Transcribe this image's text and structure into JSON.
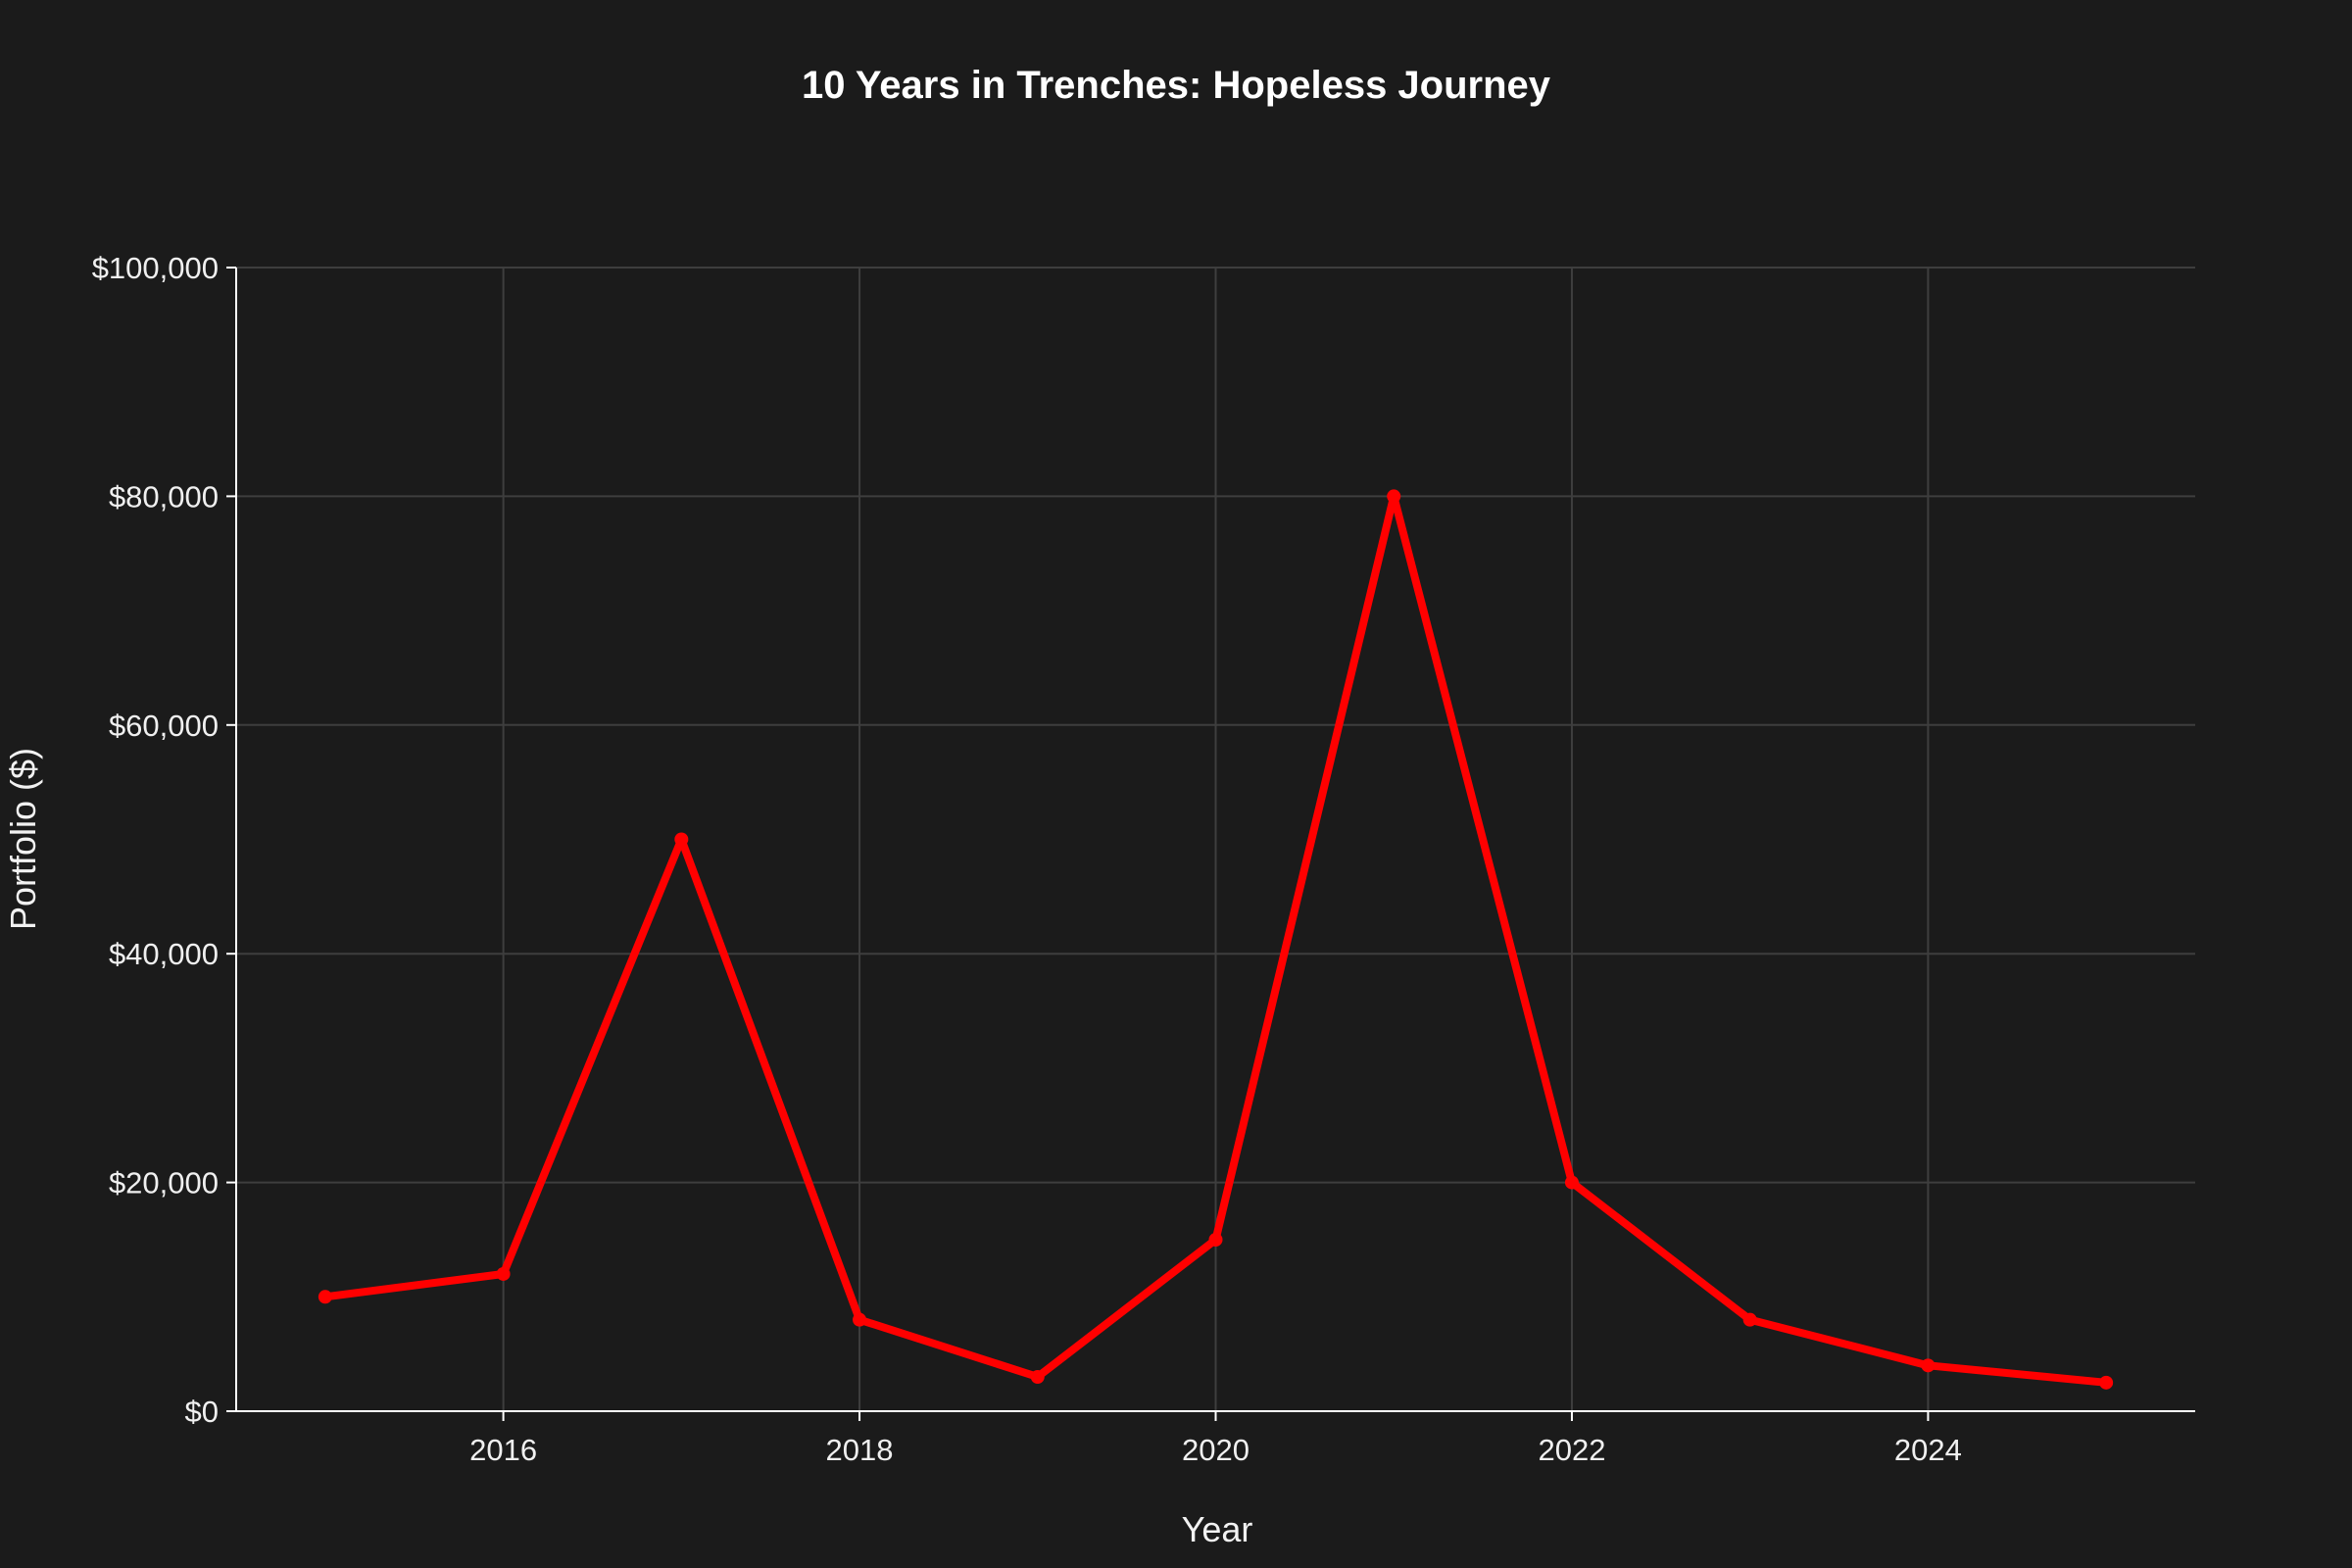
{
  "chart_data": {
    "type": "line",
    "title": "10 Years in Trenches: Hopeless Journey",
    "xlabel": "Year",
    "ylabel": "Portfolio ($)",
    "x": [
      2015,
      2016,
      2017,
      2018,
      2019,
      2020,
      2021,
      2022,
      2023,
      2024,
      2025
    ],
    "series": [
      {
        "values": [
          10000,
          12000,
          50000,
          8000,
          3000,
          15000,
          80000,
          20000,
          8000,
          4000,
          2500
        ]
      }
    ],
    "xlim": [
      2014.5,
      2025.5
    ],
    "ylim": [
      0,
      100000
    ],
    "xticks": [
      2016,
      2018,
      2020,
      2022,
      2024
    ],
    "xtick_labels": [
      "2016",
      "2018",
      "2020",
      "2022",
      "2024"
    ],
    "yticks": [
      0,
      20000,
      40000,
      60000,
      80000,
      100000
    ],
    "ytick_labels": [
      "$0",
      "$20,000",
      "$40,000",
      "$60,000",
      "$80,000",
      "$100,000"
    ],
    "grid": true,
    "legend": "none",
    "colors": {
      "background": "#1b1b1b",
      "line": "#ff0000",
      "grid": "#3e3e3e",
      "axis": "#ffffff",
      "text": "#f0f0f0"
    }
  }
}
